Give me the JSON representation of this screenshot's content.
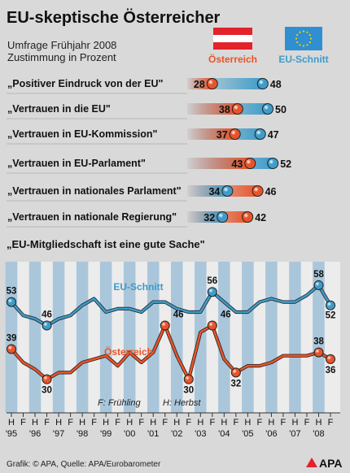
{
  "title": "EU-skeptische Österreicher",
  "subtitle_1": "Umfrage Frühjahr 2008",
  "subtitle_2": "Zustimmung in Prozent",
  "legend": {
    "austria": "Österreich",
    "eu": "EU-Schnitt"
  },
  "colors": {
    "austria": "#e8542a",
    "austria_flag": "#e2232a",
    "eu": "#3f9cc9",
    "eu_flag": "#2f8fd0",
    "eu_stars": "#f5d000",
    "band": "#9fbfd7",
    "bg": "#d9d9d9",
    "chart_bg": "#ececec",
    "logo_red": "#e2232a"
  },
  "chart_data": [
    {
      "type": "bar",
      "categories": [
        "„Positiver Eindruck von der EU\"",
        "„Vertrauen in die EU\"",
        "„Vertrauen in EU-Kommission\"",
        "„Vertrauen in EU-Parlament\"",
        "„Vertrauen in nationales Parlament\"",
        "„Vertrauen in nationale Regierung\""
      ],
      "series": [
        {
          "name": "Österreich",
          "values": [
            28,
            38,
            37,
            43,
            46,
            42
          ]
        },
        {
          "name": "EU-Schnitt",
          "values": [
            48,
            50,
            47,
            52,
            34,
            32
          ]
        }
      ]
    },
    {
      "type": "line",
      "title": "„EU-Mitgliedschaft ist eine gute Sache\"",
      "x_ticks": [
        "H",
        "F",
        "H",
        "F",
        "H",
        "F",
        "H",
        "F",
        "H",
        "F",
        "H",
        "F",
        "H",
        "F",
        "H",
        "F",
        "H",
        "F",
        "H",
        "F",
        "H",
        "F",
        "H",
        "F",
        "H",
        "F",
        "H",
        "F"
      ],
      "year_labels": [
        "'95",
        "'96",
        "'97",
        "'98",
        "'99",
        "'00",
        "'01",
        "'02",
        "'03",
        "'04",
        "'05",
        "'06",
        "'07",
        "'08"
      ],
      "ylim": [
        20,
        65
      ],
      "series": [
        {
          "name": "EU-Schnitt",
          "values": [
            53,
            49,
            48,
            46,
            48,
            49,
            52,
            54,
            50,
            51,
            51,
            50,
            53,
            53,
            51,
            50,
            50,
            56,
            53,
            50,
            50,
            53,
            54,
            53,
            53,
            55,
            58,
            52
          ],
          "labels": [
            {
              "index": 0,
              "text": "53"
            },
            {
              "index": 3,
              "text": "46"
            },
            {
              "index": 17,
              "text": "56"
            },
            {
              "index": 26,
              "text": "58"
            },
            {
              "index": 27,
              "text": "52"
            }
          ]
        },
        {
          "name": "Österreich",
          "values": [
            39,
            35,
            33,
            30,
            32,
            32,
            35,
            36,
            37,
            34,
            38,
            35,
            38,
            46,
            37,
            30,
            44,
            46,
            36,
            32,
            34,
            34,
            35,
            37,
            37,
            37,
            38,
            36
          ],
          "labels": [
            {
              "index": 0,
              "text": "39"
            },
            {
              "index": 3,
              "text": "30"
            },
            {
              "index": 13,
              "text": "46"
            },
            {
              "index": 15,
              "text": "30"
            },
            {
              "index": 17,
              "text": "46"
            },
            {
              "index": 19,
              "text": "32"
            },
            {
              "index": 26,
              "text": "38"
            },
            {
              "index": 27,
              "text": "36"
            }
          ]
        }
      ]
    }
  ],
  "note_spring": "F: Frühling",
  "note_autumn": "H: Herbst",
  "source": "Grafik: © APA, Quelle: APA/Eurobarometer",
  "logo": "APA"
}
